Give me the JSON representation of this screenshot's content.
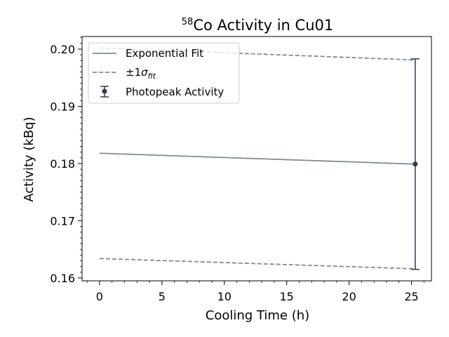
{
  "chart_data": {
    "type": "line",
    "title": {
      "isotope_mass": "58",
      "text": "Co Activity in Cu01"
    },
    "xlabel": "Cooling Time (h)",
    "ylabel": "Activity (kBq)",
    "xlim": [
      -1.4,
      26.6
    ],
    "ylim": [
      0.1595,
      0.2022
    ],
    "x_ticks": [
      0,
      5,
      10,
      15,
      20,
      25
    ],
    "x_tick_labels": [
      "0",
      "5",
      "10",
      "15",
      "20",
      "25"
    ],
    "y_ticks": [
      0.16,
      0.17,
      0.18,
      0.19,
      0.2
    ],
    "y_tick_labels": [
      "0.16",
      "0.17",
      "0.18",
      "0.19",
      "0.20"
    ],
    "grid": false,
    "legend_position": "upper-left",
    "colors": {
      "fit": "#7f8c8d",
      "points": "#2c3e50",
      "axes": "#000000"
    },
    "series": [
      {
        "name": "Exponential Fit",
        "style": "solid",
        "x": [
          0,
          25.3
        ],
        "y": [
          0.1818,
          0.1799
        ]
      },
      {
        "name": "±1σfit",
        "style": "dashed",
        "x": [
          0,
          25.3
        ],
        "y": [
          0.2002,
          0.1981
        ]
      },
      {
        "name": "",
        "style": "dashed",
        "x": [
          0,
          25.3
        ],
        "y": [
          0.1634,
          0.1616
        ]
      },
      {
        "name": "Photopeak Activity",
        "style": "errorbar",
        "x": [
          25.3
        ],
        "y": [
          0.1799
        ],
        "yerr": [
          0.0184
        ]
      }
    ],
    "legend": {
      "fit_label": "Exponential Fit",
      "band_label_prefix": "±1",
      "band_label_sigma": "σ",
      "band_label_sub": "fit",
      "points_label": "Photopeak Activity"
    }
  }
}
